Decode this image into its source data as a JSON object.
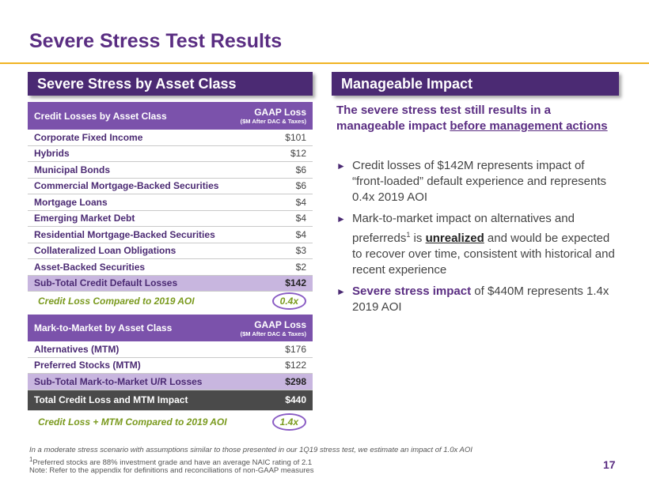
{
  "title": "Severe Stress Test Results",
  "left_header": "Severe Stress by Asset Class",
  "right_header": "Manageable Impact",
  "credit_table": {
    "col1": "Credit Losses by Asset Class",
    "gaap_line1": "GAAP Loss",
    "gaap_line2": "($M After DAC & Taxes)",
    "rows": [
      {
        "name": "Corporate Fixed Income",
        "value": "$101"
      },
      {
        "name": "Hybrids",
        "value": "$12"
      },
      {
        "name": "Municipal Bonds",
        "value": "$6"
      },
      {
        "name": "Commercial Mortgage-Backed Securities",
        "value": "$6"
      },
      {
        "name": "Mortgage Loans",
        "value": "$4"
      },
      {
        "name": "Emerging Market Debt",
        "value": "$4"
      },
      {
        "name": "Residential Mortgage-Backed Securities",
        "value": "$4"
      },
      {
        "name": "Collateralized Loan Obligations",
        "value": "$3"
      },
      {
        "name": "Asset-Backed Securities",
        "value": "$2"
      }
    ],
    "subtotal_name": "Sub-Total Credit Default Losses",
    "subtotal_value": "$142",
    "compare_label": "Credit Loss Compared to 2019 AOI",
    "compare_value": "0.4x"
  },
  "mtm_table": {
    "col1": "Mark-to-Market by Asset Class",
    "gaap_line1": "GAAP Loss",
    "gaap_line2": "($M After DAC & Taxes)",
    "rows": [
      {
        "name": "Alternatives (MTM)",
        "value": "$176"
      },
      {
        "name": "Preferred Stocks (MTM)",
        "value": "$122"
      }
    ],
    "subtotal_name": "Sub-Total Mark-to-Market U/R Losses",
    "subtotal_value": "$298",
    "total_name": "Total Credit Loss and MTM Impact",
    "total_value": "$440",
    "compare_label": "Credit Loss + MTM Compared to 2019 AOI",
    "compare_value": "1.4x"
  },
  "impact": {
    "heading_a": "The severe stress test still results in a manageable impact ",
    "heading_u": "before management actions",
    "b1": "Credit losses of $142M represents impact of “front-loaded” default experience and represents 0.4x 2019 AOI",
    "b2_a": "Mark-to-market impact on alternatives and preferreds",
    "b2_sup": "1",
    "b2_b": " is ",
    "b2_u": "unrealized",
    "b2_c": " and would be expected to recover over time, consistent with historical and recent experience",
    "b3_bold": "Severe stress impact",
    "b3_rest": " of $440M represents 1.4x 2019 AOI"
  },
  "footnotes": {
    "f1": "In a moderate stress scenario with assumptions similar to those presented in our 1Q19 stress test, we estimate an impact of 1.0x AOI",
    "f2_sup": "1",
    "f2": "Preferred stocks are 88% investment grade and have an average NAIC rating of 2.1",
    "f3": "Note: Refer to the appendix for definitions and reconciliations of non-GAAP measures"
  },
  "page_number": "17",
  "colors": {
    "purple": "#5a2d82",
    "accent": "#f0b323",
    "green": "#7a9a1e"
  }
}
